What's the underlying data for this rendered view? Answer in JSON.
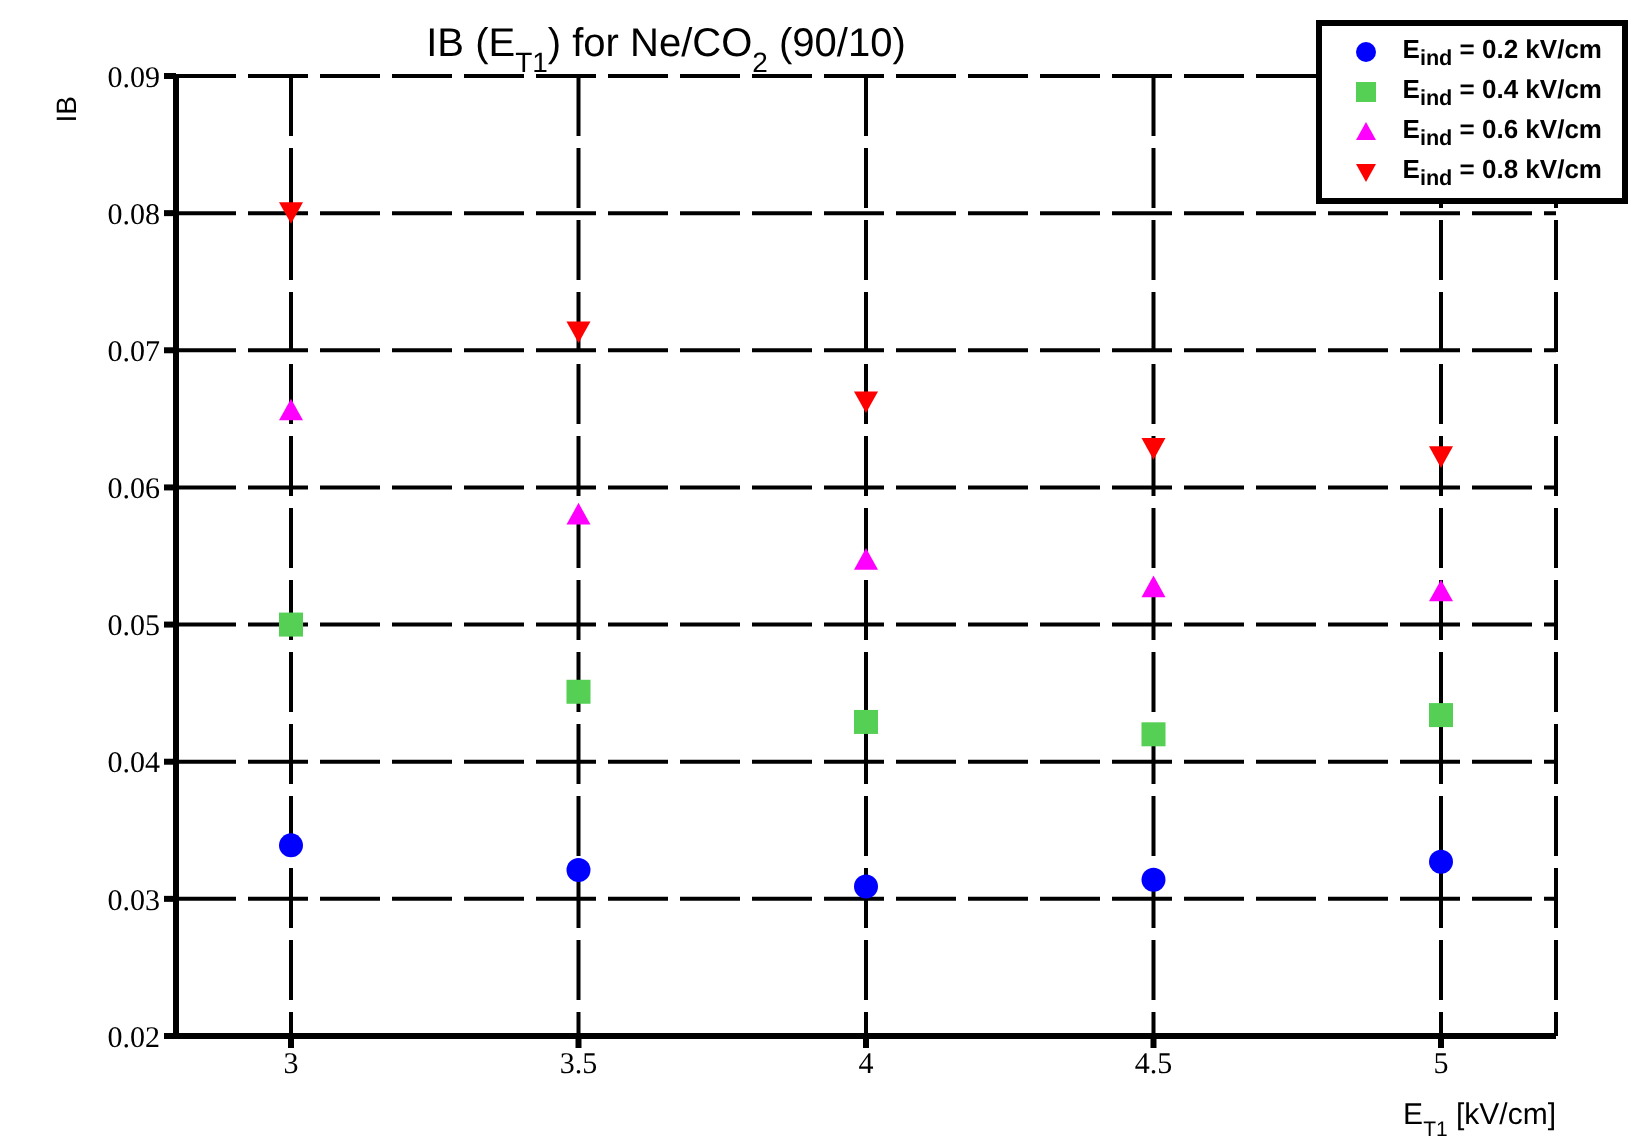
{
  "chart_data": {
    "type": "scatter",
    "title": "IB (E$_{T1}$) for  Ne/CO$_{2}$ (90/10)",
    "xlabel": "E$_{T1}$ [kV/cm]",
    "ylabel": "IB",
    "x": [
      3,
      3.5,
      4,
      4.5,
      5
    ],
    "series": [
      {
        "name": "E$_{ind}$ = 0.2 kV/cm",
        "color": "#0000ff",
        "marker": "circle",
        "values": [
          0.0339,
          0.0321,
          0.0309,
          0.0314,
          0.0327
        ]
      },
      {
        "name": "E$_{ind}$ = 0.4 kV/cm",
        "color": "#55d055",
        "marker": "square",
        "values": [
          0.05,
          0.0451,
          0.0429,
          0.042,
          0.0434
        ]
      },
      {
        "name": "E$_{ind}$ = 0.6 kV/cm",
        "color": "#ff00ff",
        "marker": "triangle",
        "values": [
          0.0656,
          0.058,
          0.0547,
          0.0527,
          0.0524
        ]
      },
      {
        "name": "E$_{ind}$ = 0.8 kV/cm",
        "color": "#ff0000",
        "marker": "triangle-down",
        "values": [
          0.0801,
          0.0714,
          0.0663,
          0.0629,
          0.0623
        ]
      }
    ],
    "xlim": [
      2.8,
      5.2
    ],
    "xticks": [
      3,
      3.5,
      4,
      4.5,
      5
    ],
    "ylim": [
      0.02,
      0.09
    ],
    "yticks": [
      0.02,
      0.03,
      0.04,
      0.05,
      0.06,
      0.07,
      0.08,
      0.09
    ],
    "grid": true,
    "legend": "top right"
  }
}
